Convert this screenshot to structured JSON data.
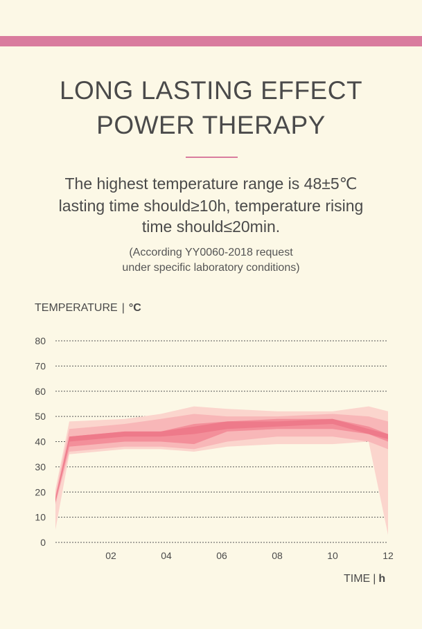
{
  "header": {
    "accent_color": "#d97c9e",
    "title_line1": "LONG LASTING EFFECT",
    "title_line2": "POWER THERAPY"
  },
  "description": {
    "line1": "The highest temperature range is 48±5℃",
    "line2": "lasting time should≥10h, temperature rising",
    "line3": "time should≤20min."
  },
  "note": {
    "line1": "(According YY0060-2018 request",
    "line2": "under specific laboratory conditions)"
  },
  "chart_data": {
    "type": "area",
    "ylabel_text": "TEMPERATURE",
    "ylabel_unit": "°C",
    "xlabel_text": "TIME",
    "xlabel_unit": "h",
    "ylim": [
      0,
      80
    ],
    "xlim": [
      0,
      12
    ],
    "y_ticks": [
      "0",
      "10",
      "20",
      "30",
      "40",
      "50",
      "60",
      "70",
      "80"
    ],
    "x_ticks": [
      "02",
      "04",
      "06",
      "08",
      "10",
      "12"
    ],
    "grid": "horizontal dashed",
    "colors": {
      "outer_band": "#fbd5cd",
      "middle_band": "#f8b7b8",
      "inner_band": "#f38f9a",
      "core_line": "#ee7a8a"
    },
    "x": [
      0,
      0.5,
      2.5,
      3.8,
      5.0,
      6.2,
      8.0,
      10.0,
      11.3,
      12.0
    ],
    "series": [
      {
        "band": "outer",
        "upper": [
          21,
          48,
          49,
          51,
          54,
          53,
          52,
          52,
          54,
          52
        ],
        "lower": [
          5,
          35,
          37,
          37,
          36,
          38,
          39,
          39,
          40,
          3
        ]
      },
      {
        "band": "middle",
        "upper": [
          19,
          45,
          47,
          49,
          51,
          50,
          50,
          51,
          50,
          48
        ],
        "lower": [
          15,
          36,
          38,
          38,
          37,
          40,
          42,
          42,
          40,
          37
        ]
      },
      {
        "band": "inner",
        "upper": [
          18,
          42,
          44,
          44,
          47,
          48,
          49,
          49,
          46,
          43
        ],
        "lower": [
          16,
          38,
          40,
          40,
          39,
          44,
          45,
          45,
          43,
          40
        ]
      },
      {
        "band": "core",
        "upper": [
          17,
          42,
          44,
          44,
          46,
          48,
          48,
          49,
          45,
          43
        ],
        "lower": [
          16,
          40,
          42,
          42,
          43,
          45,
          46,
          47,
          43,
          41
        ]
      }
    ]
  }
}
